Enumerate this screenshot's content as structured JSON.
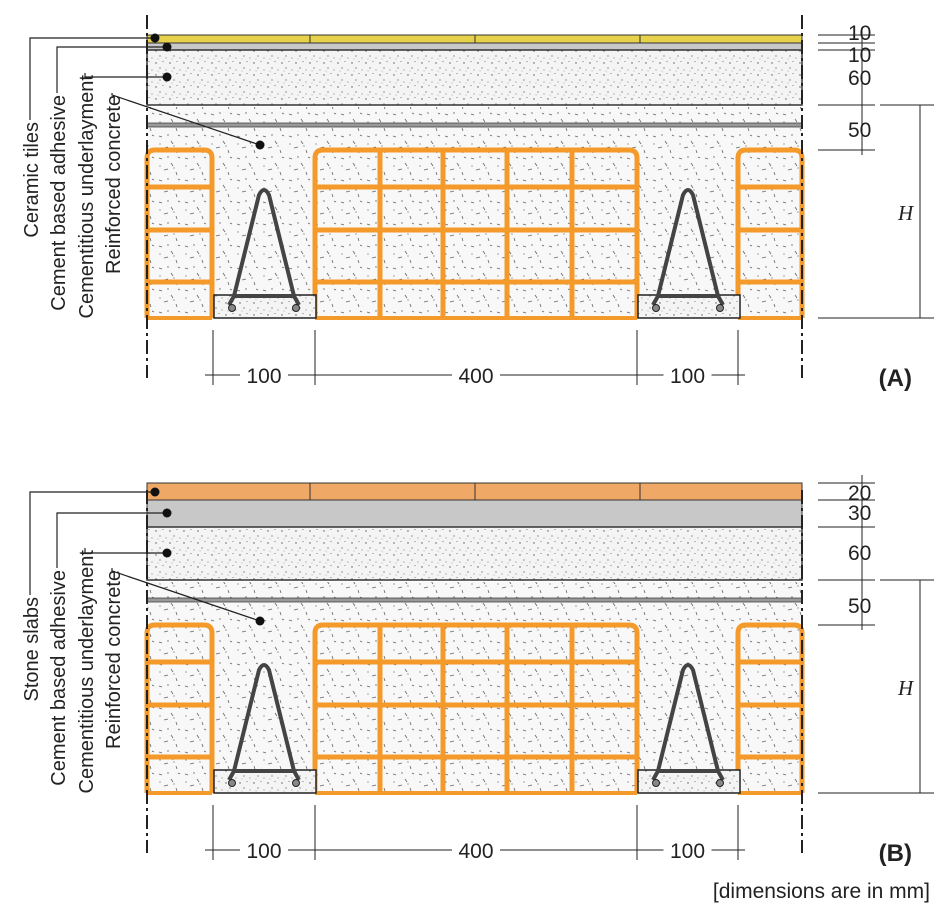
{
  "panels": [
    {
      "label": "(A)",
      "layers": [
        "Ceramic tiles",
        "Cement based adhesive",
        "Cementitious underlayment",
        "Reinforced concrete"
      ],
      "thickness": [
        "10",
        "10",
        "60",
        "50"
      ],
      "height": "H",
      "spans": [
        "100",
        "400",
        "100"
      ]
    },
    {
      "label": "(B)",
      "layers": [
        "Stone slabs",
        "Cement based adhesive",
        "Cementitious underlayment",
        "Reinforced concrete"
      ],
      "thickness": [
        "20",
        "30",
        "60",
        "50"
      ],
      "height": "H",
      "spans": [
        "100",
        "400",
        "100"
      ]
    }
  ],
  "footnote": "[dimensions are in mm]"
}
